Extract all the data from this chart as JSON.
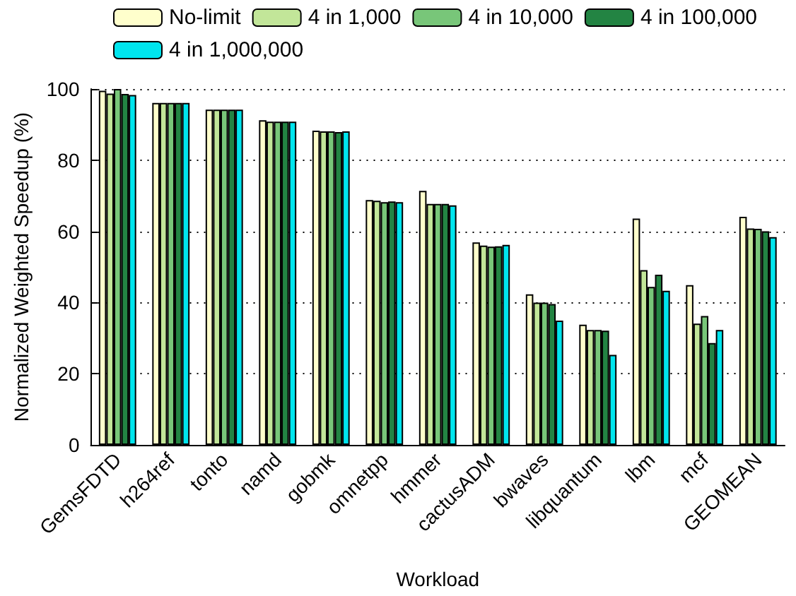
{
  "chart_data": {
    "type": "bar",
    "xlabel": "Workload",
    "ylabel": "Normalized Weighted Speedup (%)",
    "categories": [
      "GemsFDTD",
      "h264ref",
      "tonto",
      "namd",
      "gobmk",
      "omnetpp",
      "hmmer",
      "cactusADM",
      "bwaves",
      "libquantum",
      "lbm",
      "mcf",
      "GEOMEAN"
    ],
    "series": [
      {
        "name": "No-limit",
        "color": "#ffffcc",
        "values": [
          99.5,
          96.1,
          94.2,
          91.2,
          88.3,
          68.8,
          71.4,
          56.9,
          42.3,
          33.8,
          63.6,
          44.9,
          64.1
        ]
      },
      {
        "name": "4 in 1,000",
        "color": "#c2e699",
        "values": [
          98.7,
          96.1,
          94.2,
          90.8,
          88.1,
          68.6,
          67.7,
          56.0,
          40.0,
          32.3,
          49.1,
          34.1,
          60.8
        ]
      },
      {
        "name": "4 in 10,000",
        "color": "#78c679",
        "values": [
          100,
          96.1,
          94.2,
          90.8,
          88.1,
          68.2,
          67.7,
          55.7,
          40.0,
          32.3,
          44.4,
          36.2,
          60.7
        ]
      },
      {
        "name": "4 in 100,000",
        "color": "#238443",
        "values": [
          98.6,
          96.1,
          94.2,
          90.8,
          87.9,
          68.4,
          67.7,
          55.8,
          39.6,
          32.1,
          47.8,
          28.6,
          60.0
        ]
      },
      {
        "name": "4 in 1,000,000",
        "color": "#00e5ee",
        "values": [
          98.3,
          96.1,
          94.2,
          90.8,
          88.1,
          68.2,
          67.3,
          56.2,
          34.9,
          25.3,
          43.3,
          32.3,
          58.4
        ]
      }
    ],
    "ylim": [
      0,
      100
    ],
    "yticks": [
      0,
      20,
      40,
      60,
      80,
      100
    ],
    "grid": "y",
    "legend": "top"
  }
}
